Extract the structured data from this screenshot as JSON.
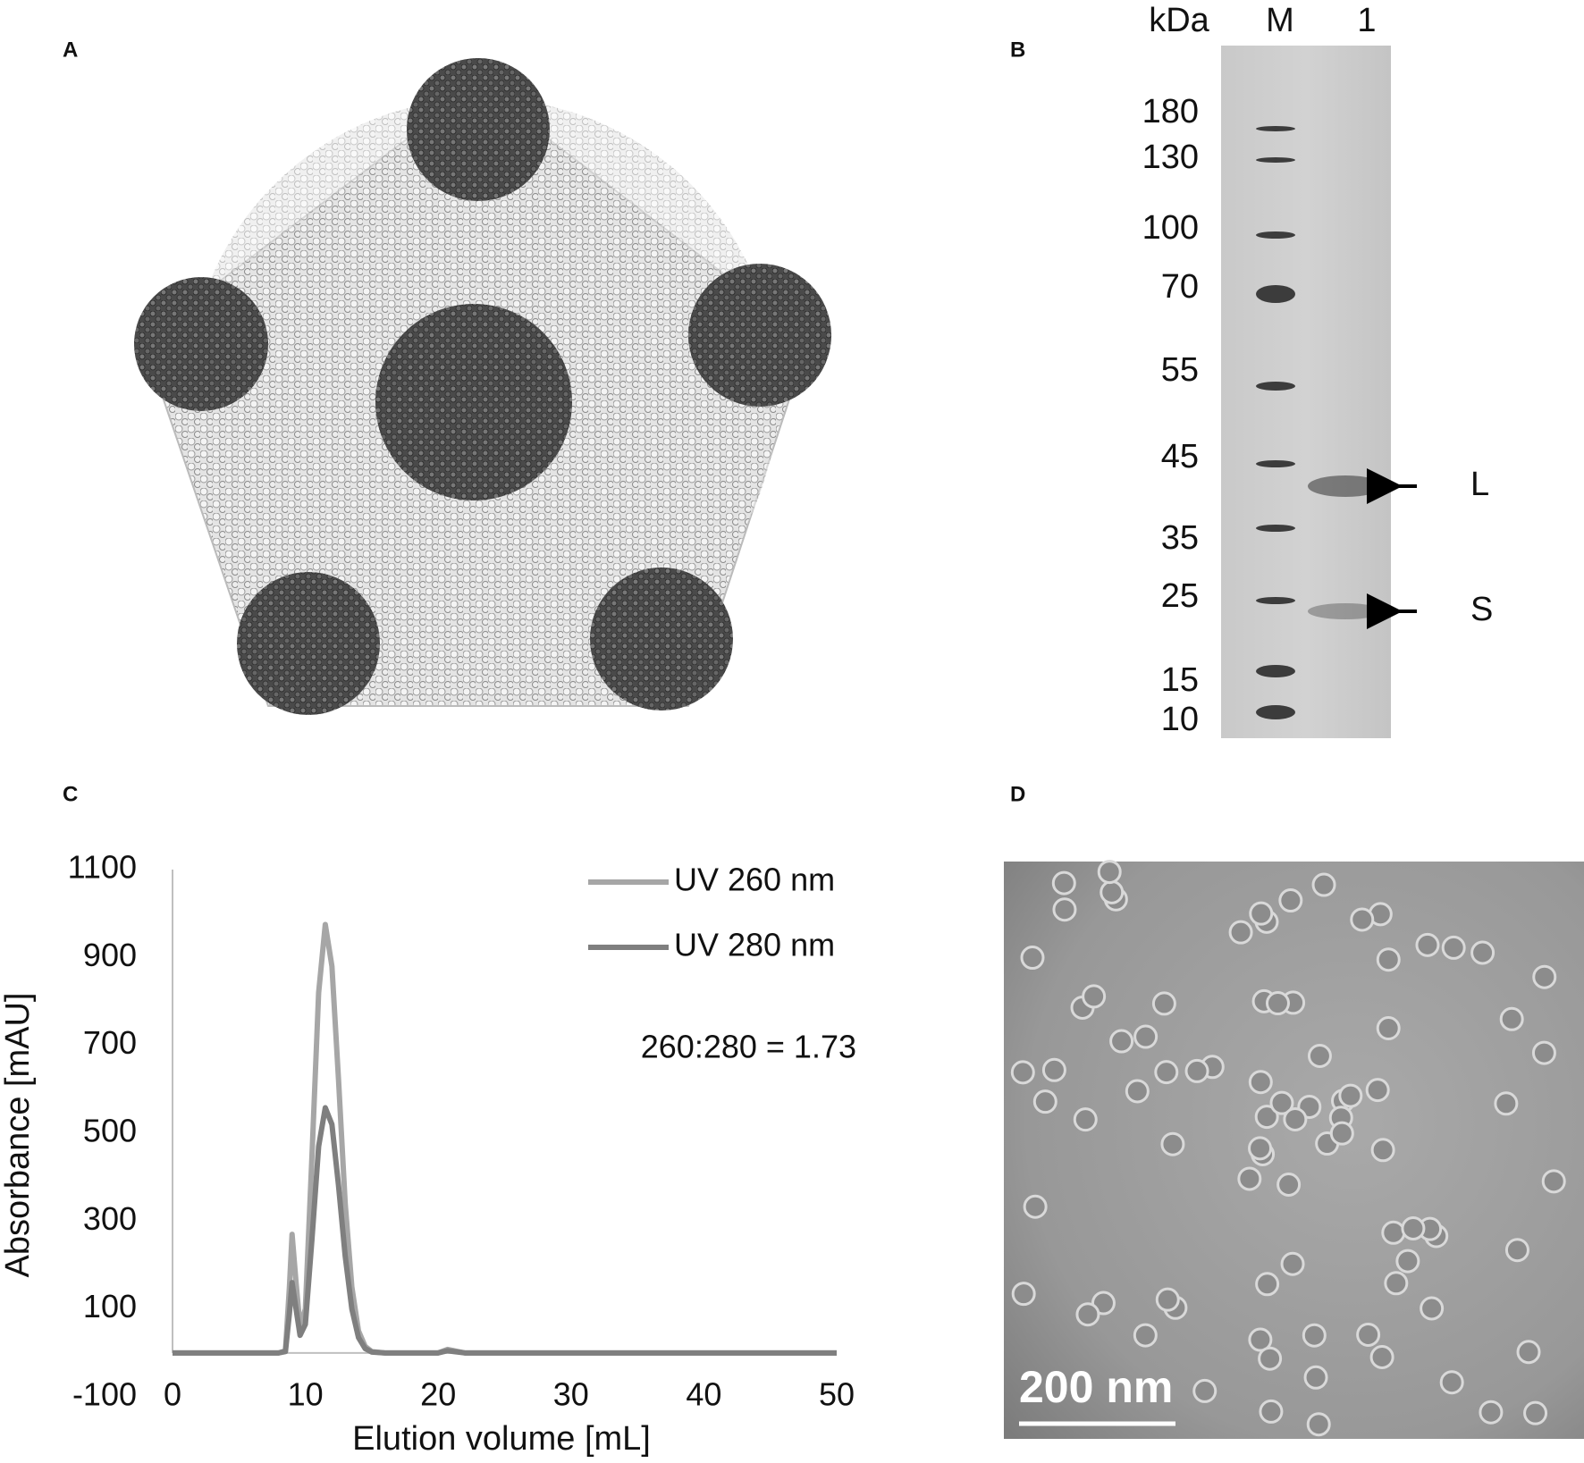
{
  "panel_labels": [
    "A",
    "B",
    "C",
    "D"
  ],
  "gel": {
    "unit": "kDa",
    "lanes": [
      "M",
      "1"
    ],
    "markers": [
      180,
      130,
      100,
      70,
      55,
      45,
      35,
      25,
      15,
      10
    ],
    "bands": [
      "L",
      "S"
    ]
  },
  "micrograph": {
    "scale_bar": "200 nm"
  },
  "chart_data": {
    "type": "line",
    "x_label": "Elution volume [mL]",
    "y_label": "Absorbance [mAU]",
    "annotation": "260:280 = 1.73",
    "x": [
      0,
      8,
      8.5,
      8.8,
      9.0,
      9.3,
      9.6,
      10.0,
      10.5,
      11.0,
      11.5,
      12.0,
      12.5,
      13.0,
      13.5,
      14.0,
      14.5,
      15.0,
      16,
      20,
      20.7,
      22,
      30,
      40,
      50
    ],
    "series": [
      {
        "name": "UV 260 nm",
        "color": "#a6a6a6",
        "values": [
          0,
          0,
          5,
          150,
          270,
          160,
          60,
          100,
          450,
          820,
          975,
          880,
          620,
          340,
          150,
          50,
          15,
          3,
          0,
          0,
          8,
          0,
          0,
          0,
          0
        ]
      },
      {
        "name": "UV 280 nm",
        "color": "#7f7f7f",
        "values": [
          0,
          0,
          3,
          90,
          160,
          100,
          40,
          65,
          260,
          470,
          558,
          520,
          380,
          220,
          100,
          35,
          10,
          2,
          0,
          0,
          5,
          0,
          0,
          0,
          0
        ]
      }
    ],
    "xlim": [
      0,
      50
    ],
    "xticks": [
      0,
      10,
      20,
      30,
      40,
      50
    ],
    "ylim": [
      -100,
      1100
    ],
    "yticks": [
      -100,
      100,
      300,
      500,
      700,
      900,
      1100
    ],
    "legend": "upper right",
    "grid": false
  }
}
